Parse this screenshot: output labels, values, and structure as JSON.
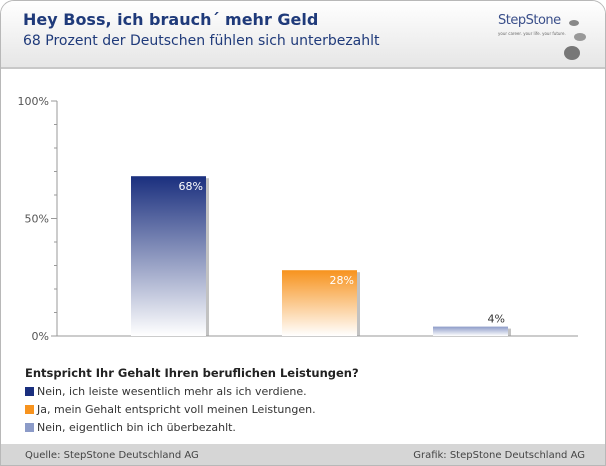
{
  "header": {
    "title": "Hey Boss, ich brauch´ mehr Geld",
    "subtitle": "68 Prozent der Deutschen fühlen sich unterbezahlt",
    "logo": "StepStone",
    "logo_tagline": "your career. your life. your future."
  },
  "chart_data": {
    "type": "bar",
    "categories": [
      "Nein, ich leiste wesentlich mehr als ich verdiene.",
      "Ja, mein Gehalt entspricht voll meinen Leistungen.",
      "Nein, eigentlich bin ich überbezahlt."
    ],
    "values": [
      68,
      28,
      4
    ],
    "labels": [
      "68%",
      "28%",
      "4%"
    ],
    "colors": [
      "#1a2f7e",
      "#f7931e",
      "#8c9bc8"
    ],
    "ylim": [
      0,
      100
    ],
    "yticks": [
      "0%",
      "50%",
      "100%"
    ],
    "legend_title": "Entspricht Ihr Gehalt Ihren beruflichen Leistungen?",
    "legend_placement": "bottom-left"
  },
  "footer": {
    "source": "Quelle: StepStone Deutschland AG",
    "credit": "Grafik: StepStone Deutschland AG"
  }
}
